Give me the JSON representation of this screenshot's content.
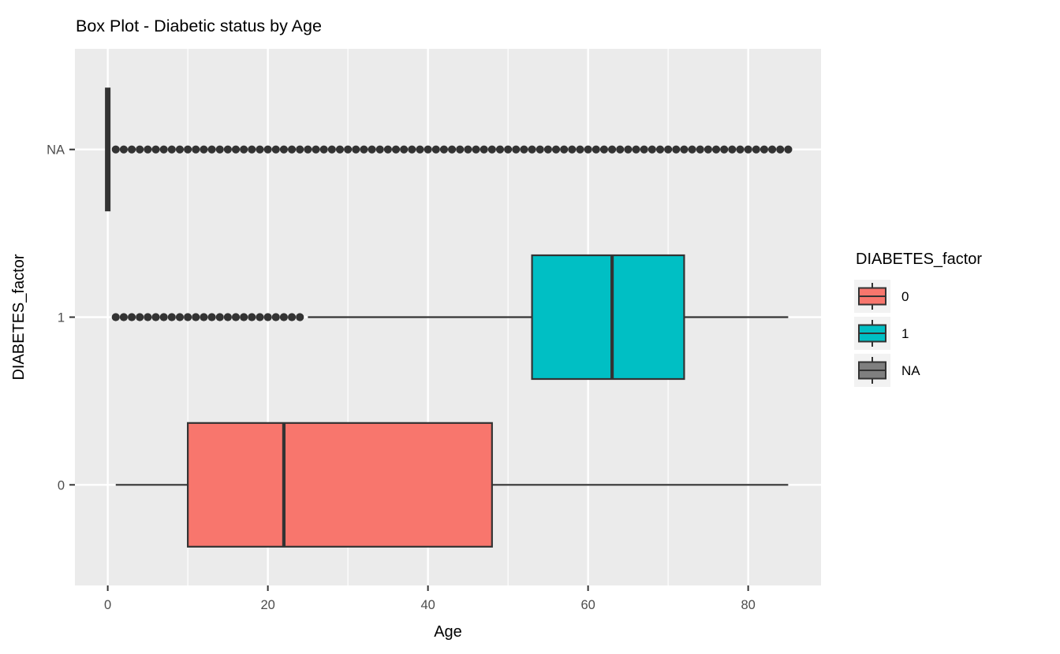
{
  "title": "Box Plot - Diabetic status by Age",
  "chart_data": {
    "type": "boxplot",
    "orientation": "horizontal",
    "title": "Box Plot - Diabetic status by Age",
    "xlabel": "Age",
    "ylabel": "DIABETES_factor",
    "x_ticks": [
      0,
      20,
      40,
      60,
      80
    ],
    "x_minor_gridlines": [
      10,
      30,
      50,
      70
    ],
    "xlim": [
      -4.1,
      89.1
    ],
    "categories_bottom_to_top": [
      "0",
      "1",
      "NA"
    ],
    "grid": "on",
    "panel_background": "#EBEBEB",
    "gridline_color": "#FFFFFF",
    "box_outline_color": "#333333",
    "outlier_color": "#333333",
    "axis_text_color": "#4D4D4D",
    "series": [
      {
        "name": "0",
        "fill": "#F8766D",
        "row_position": 1,
        "min": 1,
        "q1": 10,
        "median": 22,
        "q3": 48,
        "max": 85,
        "outliers": []
      },
      {
        "name": "1",
        "fill": "#00BFC4",
        "row_position": 2,
        "min": 25,
        "q1": 53,
        "median": 63,
        "q3": 72,
        "max": 85,
        "outliers": [
          1,
          2,
          3,
          4,
          5,
          6,
          7,
          8,
          9,
          10,
          11,
          12,
          13,
          14,
          15,
          16,
          17,
          18,
          19,
          20,
          21,
          22,
          23,
          24
        ]
      },
      {
        "name": "NA",
        "fill": "#7F7F7F",
        "row_position": 3,
        "min": 0,
        "q1": 0,
        "median": 0,
        "q3": 0,
        "max": 0,
        "outliers": [
          1,
          2,
          3,
          4,
          5,
          6,
          7,
          8,
          9,
          10,
          11,
          12,
          13,
          14,
          15,
          16,
          17,
          18,
          19,
          20,
          21,
          22,
          23,
          24,
          25,
          26,
          27,
          28,
          29,
          30,
          31,
          32,
          33,
          34,
          35,
          36,
          37,
          38,
          39,
          40,
          41,
          42,
          43,
          44,
          45,
          46,
          47,
          48,
          49,
          50,
          51,
          52,
          53,
          54,
          55,
          56,
          57,
          58,
          59,
          60,
          61,
          62,
          63,
          64,
          65,
          66,
          67,
          68,
          69,
          70,
          71,
          72,
          73,
          74,
          75,
          76,
          77,
          78,
          79,
          80,
          81,
          82,
          83,
          84,
          85
        ]
      }
    ],
    "legend": {
      "title": "DIABETES_factor",
      "position": "right",
      "key_background": "#F2F2F2",
      "entries": [
        {
          "label": "0",
          "color": "#F8766D"
        },
        {
          "label": "1",
          "color": "#00BFC4"
        },
        {
          "label": "NA",
          "color": "#7F7F7F"
        }
      ]
    }
  }
}
